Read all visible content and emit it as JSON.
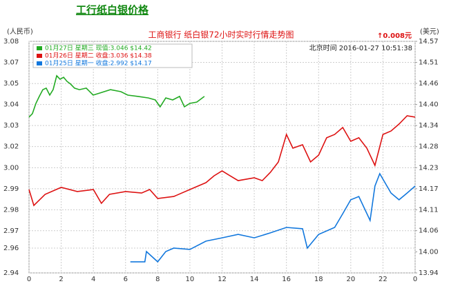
{
  "chart_data": {
    "type": "line",
    "page_title": "工行纸白银价格",
    "title": "工商银行  纸白银72小时实时行情走势图",
    "ylabel": "(人民币)",
    "y2label": "(美元)",
    "annotation": "↑0.008元",
    "timestamp": "北京时间 2016-01-27 10:51:38",
    "grid": true,
    "legend": "upper left",
    "xlim": [
      0,
      24
    ],
    "xticks": [
      0,
      2,
      4,
      6,
      8,
      10,
      12,
      14,
      16,
      18,
      20,
      22,
      {
        "value": 24,
        "label": "0"
      }
    ],
    "ylim": [
      2.94,
      3.08
    ],
    "yticks": [
      3.08,
      {
        "value": 3.0673,
        "label": "3.07"
      },
      {
        "value": 3.0545,
        "label": "3.05"
      },
      {
        "value": 3.0418,
        "label": "3.04"
      },
      {
        "value": 3.0291,
        "label": "3.03"
      },
      {
        "value": 3.0164,
        "label": "3.02"
      },
      {
        "value": 3.0036,
        "label": "3.00"
      },
      {
        "value": 2.9909,
        "label": "2.99"
      },
      {
        "value": 2.9782,
        "label": "2.98"
      },
      {
        "value": 2.9655,
        "label": "2.97"
      },
      {
        "value": 2.955,
        "label": "2.96"
      },
      2.94
    ],
    "y2lim": [
      13.94,
      14.57
    ],
    "y2ticks": [
      14.57,
      {
        "value": 14.5127,
        "label": "14.51"
      },
      {
        "value": 14.4555,
        "label": "14.46"
      },
      {
        "value": 14.3982,
        "label": "14.40"
      },
      {
        "value": 14.3409,
        "label": "14.34"
      },
      {
        "value": 14.2836,
        "label": "14.28"
      },
      {
        "value": 14.2264,
        "label": "14.23"
      },
      {
        "value": 14.1691,
        "label": "14.17"
      },
      {
        "value": 14.1118,
        "label": "14.11"
      },
      {
        "value": 14.055,
        "label": "14.06"
      },
      {
        "value": 13.9973,
        "label": "14.00"
      },
      13.94
    ],
    "series": [
      {
        "name": "01月27日 星期三 现值:3.046 $14.42",
        "color": "#22aa22",
        "x": [
          0,
          0.21,
          0.43,
          0.64,
          0.86,
          1.07,
          1.29,
          1.5,
          1.72,
          1.93,
          2.15,
          2.36,
          2.58,
          2.83,
          3.13,
          3.56,
          3.99,
          4.42,
          5.06,
          5.71,
          6.14,
          6.78,
          7.42,
          7.85,
          8.15,
          8.5,
          8.93,
          9.36,
          9.66,
          10,
          10.43,
          10.9
        ],
        "values": [
          3.0342,
          3.0363,
          3.0425,
          3.0467,
          3.0508,
          3.0517,
          3.0475,
          3.0508,
          3.0592,
          3.0571,
          3.0583,
          3.0558,
          3.0542,
          3.0517,
          3.0508,
          3.0517,
          3.0475,
          3.0488,
          3.0508,
          3.0496,
          3.0475,
          3.0467,
          3.0458,
          3.0446,
          3.0404,
          3.0458,
          3.0446,
          3.0467,
          3.0404,
          3.0425,
          3.0433,
          3.0467
        ]
      },
      {
        "name": "01月26日 星期二 收盘:3.036 $14.38",
        "color": "#dd1111",
        "x": [
          0,
          0.3,
          1,
          2,
          3,
          4,
          4.5,
          5,
          6,
          7,
          7.5,
          8,
          9,
          10,
          11,
          11.5,
          12,
          12.5,
          13,
          14,
          14.5,
          15,
          15.5,
          16,
          16.4,
          17,
          17.5,
          18,
          18.5,
          19,
          19.5,
          20,
          20.5,
          21,
          21.5,
          22,
          22.5,
          23,
          23.5,
          24
        ],
        "values": [
          2.9904,
          2.9808,
          2.9875,
          2.9917,
          2.9892,
          2.9904,
          2.9821,
          2.9875,
          2.9892,
          2.9883,
          2.9904,
          2.985,
          2.9862,
          2.9904,
          2.9946,
          2.9987,
          3.0017,
          2.9987,
          2.9958,
          2.9975,
          2.9958,
          3.0008,
          3.0071,
          3.0237,
          3.0154,
          3.0175,
          3.0071,
          3.0112,
          3.0217,
          3.0237,
          3.0279,
          3.0196,
          3.0217,
          3.0154,
          3.005,
          3.0237,
          3.0258,
          3.03,
          3.035,
          3.0342
        ]
      },
      {
        "name": "01月25日 星期一 收盘:2.992 $14.17",
        "color": "#1177dd",
        "x": [
          6.3,
          7.2,
          7.3,
          8,
          8.5,
          9,
          10,
          11,
          12,
          13,
          14,
          15,
          16,
          17,
          17.3,
          18,
          19,
          19.5,
          20,
          20.5,
          21.2,
          21.5,
          21.8,
          22.5,
          23,
          23.5,
          24
        ],
        "values": [
          2.9467,
          2.9467,
          2.9529,
          2.9467,
          2.9529,
          2.955,
          2.9542,
          2.9592,
          2.9612,
          2.9633,
          2.9612,
          2.9642,
          2.9675,
          2.9667,
          2.955,
          2.9633,
          2.9675,
          2.9758,
          2.9842,
          2.9862,
          2.9717,
          2.9925,
          3.0,
          2.9883,
          2.9842,
          2.9883,
          2.9925
        ]
      }
    ]
  }
}
